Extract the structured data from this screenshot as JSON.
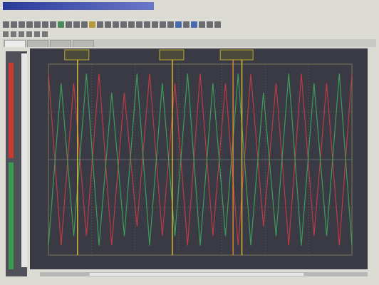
{
  "colors": {
    "trace_red": "#d23c46",
    "trace_green": "#3fae5a",
    "cursor_yellow": "#e0c030",
    "cursor_orange": "#e08a30",
    "grid": "#8a8a5a",
    "axis_text": "#cfcf9a"
  },
  "icons": [
    "new-file-icon",
    "open-folder-icon",
    "save-icon",
    "cut-icon",
    "copy-icon",
    "paste-icon",
    "undo-icon",
    "run-icon",
    "stop-icon",
    "zoom-in-icon",
    "zoom-out-icon",
    "cursor-icon",
    "settings-icon"
  ],
  "plot": {
    "x_label": "",
    "cursors": [
      {
        "label": "",
        "value": ""
      },
      {
        "label": "",
        "value": ""
      },
      {
        "label": "",
        "value": ""
      }
    ]
  },
  "chart_data": {
    "type": "line",
    "grid": true,
    "x": [
      0,
      1,
      2,
      3,
      4,
      5,
      6,
      7,
      8,
      9,
      10,
      11,
      12,
      13,
      14,
      15,
      16,
      17,
      18,
      19,
      20,
      21,
      22,
      23,
      24
    ],
    "series": [
      {
        "values": [
          0.95,
          0.05,
          0.9,
          0.1,
          0.95,
          0.05,
          0.85,
          0.15,
          0.95,
          0.1,
          0.9,
          0.05,
          0.95,
          0.1,
          0.9,
          0.05,
          0.95,
          0.15,
          0.9,
          0.05,
          0.95,
          0.1,
          0.9,
          0.05,
          0.95
        ]
      },
      {
        "values": [
          0.05,
          0.9,
          0.1,
          0.95,
          0.05,
          0.85,
          0.1,
          0.95,
          0.05,
          0.9,
          0.1,
          0.95,
          0.05,
          0.9,
          0.1,
          0.95,
          0.05,
          0.85,
          0.1,
          0.95,
          0.05,
          0.9,
          0.1,
          0.95,
          0.05
        ]
      }
    ],
    "cursors_x": [
      2.3,
      9.8,
      14.6,
      15.3
    ]
  }
}
